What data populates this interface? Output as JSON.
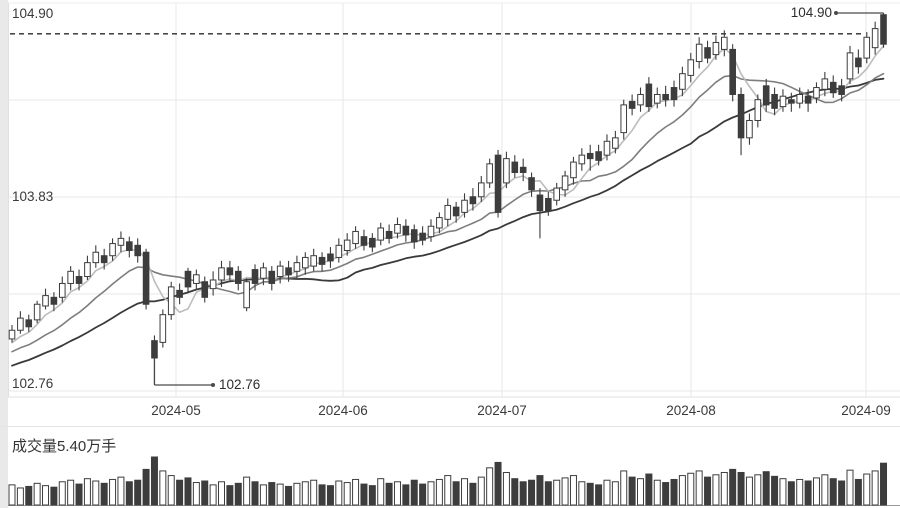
{
  "chart": {
    "y_axis_labels": {
      "max": "104.90",
      "mid": "103.83",
      "min": "102.76"
    },
    "x_labels": [
      "2024-05",
      "2024-06",
      "2024-07",
      "2024-08",
      "2024-09"
    ],
    "volume_label": "成交量5.40万手",
    "high_annotation": "104.90",
    "low_annotation": "102.76",
    "colors": {
      "bull_fill": "#ffffff",
      "bear_fill": "#3d3d3d",
      "outline": "#3d3d3d",
      "ma_fast": "#bcbcbc",
      "ma_mid": "#7e7e7e",
      "ma_slow": "#3a3a3a",
      "grid": "#e7e7e7",
      "dashed": "#2b2b2b",
      "annotation": "#4a4a4a"
    }
  },
  "chart_data": {
    "type": "candlestick",
    "title": "",
    "x_axis_labels": [
      "2024-05",
      "2024-06",
      "2024-07",
      "2024-08",
      "2024-09"
    ],
    "y_axis": {
      "max": 104.9,
      "mid": 103.83,
      "min": 102.76
    },
    "dashed_reference_price": 104.78,
    "high_point": {
      "price": 104.9,
      "index": 104
    },
    "low_point": {
      "price": 102.76,
      "index": 17
    },
    "moving_average_windows": [
      5,
      12,
      24
    ],
    "volume_unit": "万手",
    "latest_volume": 5.4,
    "candles_format": [
      "open",
      "high",
      "low",
      "close",
      "volume"
    ],
    "candles": [
      [
        103.02,
        103.1,
        103.0,
        103.07,
        2.6
      ],
      [
        103.07,
        103.18,
        103.05,
        103.14,
        2.2
      ],
      [
        103.13,
        103.16,
        103.06,
        103.09,
        2.4
      ],
      [
        103.13,
        103.24,
        103.11,
        103.22,
        2.8
      ],
      [
        103.21,
        103.31,
        103.19,
        103.27,
        2.5
      ],
      [
        103.26,
        103.29,
        103.18,
        103.22,
        2.3
      ],
      [
        103.26,
        103.38,
        103.23,
        103.34,
        3.0
      ],
      [
        103.34,
        103.44,
        103.3,
        103.41,
        3.2
      ],
      [
        103.38,
        103.42,
        103.3,
        103.34,
        2.7
      ],
      [
        103.38,
        103.5,
        103.36,
        103.46,
        3.4
      ],
      [
        103.46,
        103.56,
        103.43,
        103.52,
        3.1
      ],
      [
        103.5,
        103.54,
        103.42,
        103.46,
        2.8
      ],
      [
        103.5,
        103.6,
        103.47,
        103.57,
        3.3
      ],
      [
        103.56,
        103.64,
        103.52,
        103.6,
        3.6
      ],
      [
        103.58,
        103.61,
        103.49,
        103.53,
        3.0
      ],
      [
        103.56,
        103.6,
        103.46,
        103.5,
        3.2
      ],
      [
        103.52,
        103.54,
        103.19,
        103.22,
        4.6
      ],
      [
        103.01,
        103.04,
        102.76,
        102.91,
        6.2
      ],
      [
        103.0,
        103.19,
        102.97,
        103.16,
        4.4
      ],
      [
        103.16,
        103.35,
        103.13,
        103.32,
        3.8
      ],
      [
        103.3,
        103.34,
        103.22,
        103.26,
        3.2
      ],
      [
        103.41,
        103.43,
        103.29,
        103.32,
        3.5
      ],
      [
        103.34,
        103.42,
        103.31,
        103.39,
        2.9
      ],
      [
        103.35,
        103.38,
        103.23,
        103.26,
        3.1
      ],
      [
        103.31,
        103.41,
        103.27,
        103.36,
        2.6
      ],
      [
        103.36,
        103.47,
        103.32,
        103.43,
        3.0
      ],
      [
        103.43,
        103.47,
        103.35,
        103.39,
        2.5
      ],
      [
        103.41,
        103.44,
        103.3,
        103.34,
        2.8
      ],
      [
        103.2,
        103.37,
        103.18,
        103.35,
        3.6
      ],
      [
        103.42,
        103.45,
        103.3,
        103.34,
        3.0
      ],
      [
        103.37,
        103.46,
        103.33,
        103.43,
        2.6
      ],
      [
        103.41,
        103.44,
        103.3,
        103.34,
        2.9
      ],
      [
        103.38,
        103.47,
        103.34,
        103.44,
        2.7
      ],
      [
        103.43,
        103.47,
        103.35,
        103.39,
        2.4
      ],
      [
        103.41,
        103.5,
        103.37,
        103.46,
        2.8
      ],
      [
        103.43,
        103.52,
        103.39,
        103.49,
        3.0
      ],
      [
        103.44,
        103.54,
        103.41,
        103.5,
        3.2
      ],
      [
        103.49,
        103.52,
        103.41,
        103.45,
        2.6
      ],
      [
        103.51,
        103.55,
        103.43,
        103.47,
        2.5
      ],
      [
        103.49,
        103.6,
        103.46,
        103.56,
        3.1
      ],
      [
        103.53,
        103.63,
        103.5,
        103.59,
        2.9
      ],
      [
        103.57,
        103.67,
        103.54,
        103.64,
        3.3
      ],
      [
        103.61,
        103.65,
        103.53,
        103.56,
        2.7
      ],
      [
        103.6,
        103.63,
        103.52,
        103.55,
        2.5
      ],
      [
        103.59,
        103.69,
        103.56,
        103.66,
        3.4
      ],
      [
        103.64,
        103.68,
        103.57,
        103.6,
        2.8
      ],
      [
        103.63,
        103.72,
        103.6,
        103.68,
        3.0
      ],
      [
        103.67,
        103.71,
        103.58,
        103.62,
        2.6
      ],
      [
        103.65,
        103.68,
        103.54,
        103.58,
        3.2
      ],
      [
        103.63,
        103.67,
        103.56,
        103.59,
        2.7
      ],
      [
        103.61,
        103.71,
        103.58,
        103.67,
        3.0
      ],
      [
        103.66,
        103.75,
        103.63,
        103.72,
        3.3
      ],
      [
        103.71,
        103.83,
        103.67,
        103.79,
        3.8
      ],
      [
        103.78,
        103.81,
        103.69,
        103.73,
        3.0
      ],
      [
        103.75,
        103.86,
        103.72,
        103.82,
        3.4
      ],
      [
        103.84,
        103.89,
        103.76,
        103.8,
        2.8
      ],
      [
        103.84,
        103.96,
        103.81,
        103.92,
        3.6
      ],
      [
        103.92,
        104.06,
        103.89,
        104.03,
        4.8
      ],
      [
        104.08,
        104.11,
        103.72,
        103.75,
        5.5
      ],
      [
        103.92,
        104.1,
        103.89,
        104.06,
        4.2
      ],
      [
        104.04,
        104.08,
        103.95,
        103.98,
        3.4
      ],
      [
        104.01,
        104.06,
        103.93,
        103.98,
        3.0
      ],
      [
        103.95,
        103.98,
        103.84,
        103.88,
        3.2
      ],
      [
        103.85,
        103.89,
        103.6,
        103.76,
        3.8
      ],
      [
        103.83,
        103.87,
        103.73,
        103.76,
        3.0
      ],
      [
        103.82,
        103.92,
        103.79,
        103.89,
        3.2
      ],
      [
        103.88,
        103.99,
        103.84,
        103.96,
        3.5
      ],
      [
        103.95,
        104.07,
        103.91,
        104.04,
        3.8
      ],
      [
        104.03,
        104.12,
        103.99,
        104.08,
        3.0
      ],
      [
        104.09,
        104.14,
        103.99,
        104.06,
        2.8
      ],
      [
        104.1,
        104.14,
        104.02,
        104.05,
        2.6
      ],
      [
        104.08,
        104.2,
        104.05,
        104.16,
        3.2
      ],
      [
        104.12,
        104.22,
        104.09,
        104.18,
        3.0
      ],
      [
        104.21,
        104.4,
        104.17,
        104.37,
        4.4
      ],
      [
        104.39,
        104.43,
        104.31,
        104.35,
        3.6
      ],
      [
        104.37,
        104.47,
        104.33,
        104.43,
        3.4
      ],
      [
        104.49,
        104.53,
        104.33,
        104.36,
        4.0
      ],
      [
        104.38,
        104.47,
        104.35,
        104.43,
        3.2
      ],
      [
        104.43,
        104.48,
        104.36,
        104.4,
        2.9
      ],
      [
        104.47,
        104.51,
        104.36,
        104.4,
        3.3
      ],
      [
        104.46,
        104.59,
        104.42,
        104.55,
        3.8
      ],
      [
        104.54,
        104.67,
        104.5,
        104.63,
        4.1
      ],
      [
        104.62,
        104.76,
        104.58,
        104.72,
        4.4
      ],
      [
        104.7,
        104.74,
        104.61,
        104.64,
        3.6
      ],
      [
        104.66,
        104.77,
        104.63,
        104.73,
        3.9
      ],
      [
        104.69,
        104.8,
        104.65,
        104.76,
        4.2
      ],
      [
        104.69,
        104.72,
        104.39,
        104.43,
        4.6
      ],
      [
        104.43,
        104.47,
        104.08,
        104.18,
        4.2
      ],
      [
        104.18,
        104.32,
        104.14,
        104.28,
        3.6
      ],
      [
        104.28,
        104.43,
        104.24,
        104.4,
        3.9
      ],
      [
        104.48,
        104.52,
        104.33,
        104.37,
        4.3
      ],
      [
        104.43,
        104.47,
        104.31,
        104.35,
        3.7
      ],
      [
        104.36,
        104.46,
        104.33,
        104.42,
        3.4
      ],
      [
        104.4,
        104.44,
        104.33,
        104.38,
        3.0
      ],
      [
        104.38,
        104.47,
        104.35,
        104.43,
        3.3
      ],
      [
        104.42,
        104.46,
        104.33,
        104.38,
        3.1
      ],
      [
        104.41,
        104.5,
        104.38,
        104.47,
        3.5
      ],
      [
        104.46,
        104.56,
        104.42,
        104.52,
        3.9
      ],
      [
        104.5,
        104.54,
        104.41,
        104.44,
        3.4
      ],
      [
        104.48,
        104.52,
        104.39,
        104.43,
        3.1
      ],
      [
        104.52,
        104.71,
        104.49,
        104.67,
        4.5
      ],
      [
        104.64,
        104.69,
        104.55,
        104.59,
        3.3
      ],
      [
        104.64,
        104.79,
        104.61,
        104.76,
        4.0
      ],
      [
        104.7,
        104.85,
        104.66,
        104.81,
        4.4
      ],
      [
        104.89,
        104.9,
        104.7,
        104.72,
        5.4
      ]
    ]
  }
}
